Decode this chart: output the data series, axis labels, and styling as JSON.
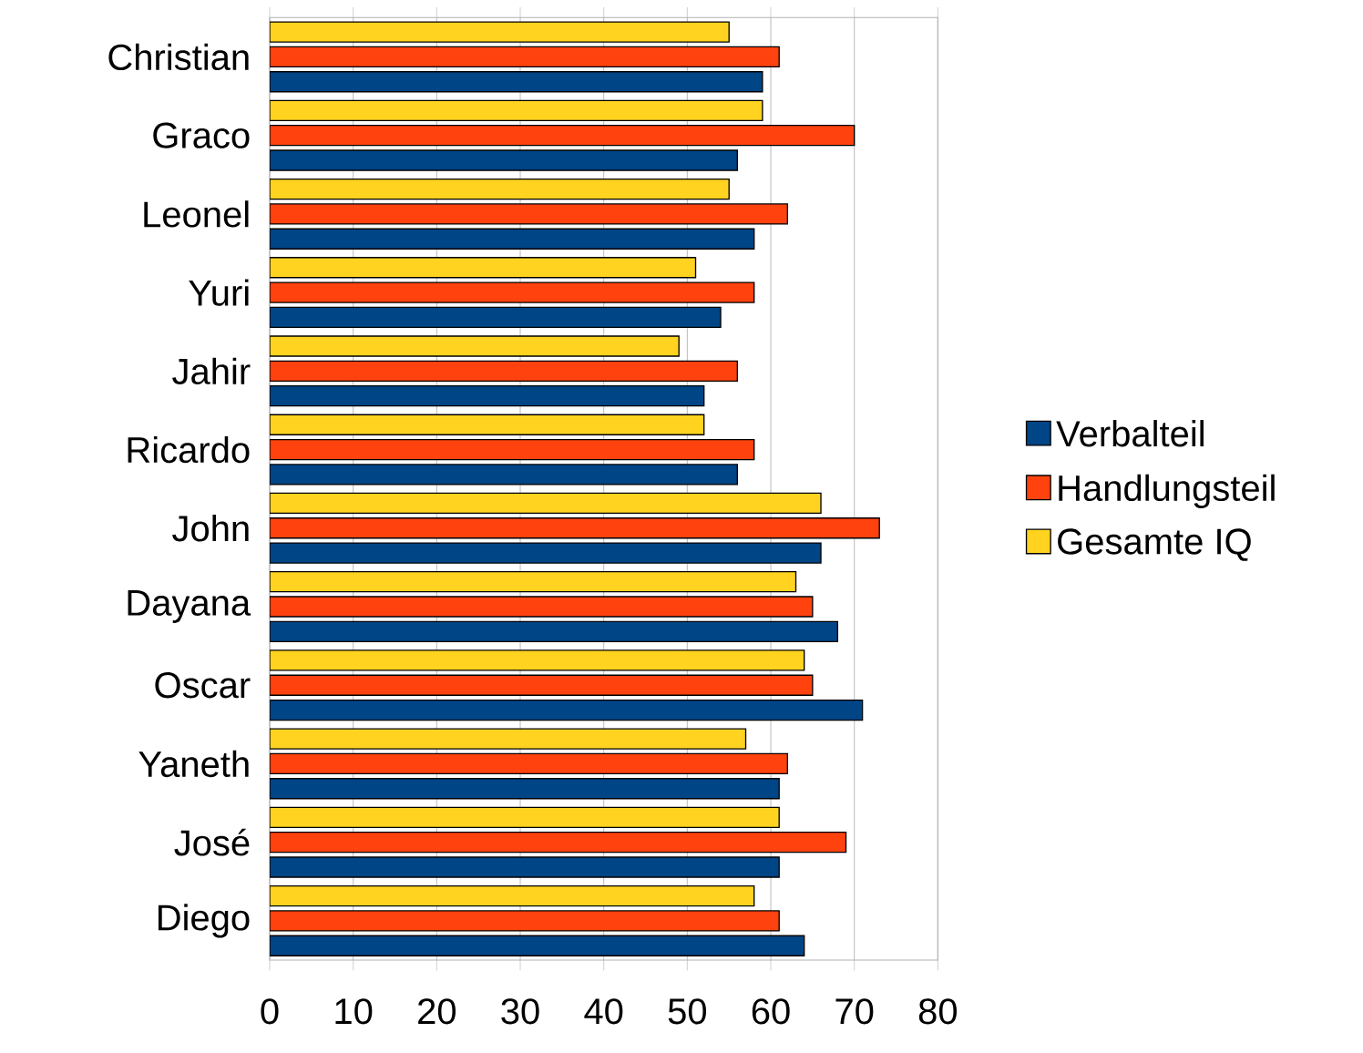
{
  "chart_data": {
    "type": "bar",
    "orientation": "horizontal",
    "categories": [
      "Christian",
      "Graco",
      "Leonel",
      "Yuri",
      "Jahir",
      "Ricardo",
      "John",
      "Dayana",
      "Oscar",
      "Yaneth",
      "José",
      "Diego"
    ],
    "series": [
      {
        "name": "Verbalteil",
        "color": "#004586",
        "values": [
          59,
          56,
          58,
          54,
          52,
          56,
          66,
          68,
          71,
          61,
          61,
          64
        ]
      },
      {
        "name": "Handlungsteil",
        "color": "#ff420e",
        "values": [
          61,
          70,
          62,
          58,
          56,
          58,
          73,
          65,
          65,
          62,
          69,
          61
        ]
      },
      {
        "name": "Gesamte IQ",
        "color": "#ffd320",
        "values": [
          55,
          59,
          55,
          51,
          49,
          52,
          66,
          63,
          64,
          57,
          61,
          58
        ]
      }
    ],
    "xlim": [
      0,
      80
    ],
    "xticks": [
      0,
      10,
      20,
      30,
      40,
      50,
      60,
      70,
      80
    ],
    "grid": "x",
    "legend": "right"
  }
}
